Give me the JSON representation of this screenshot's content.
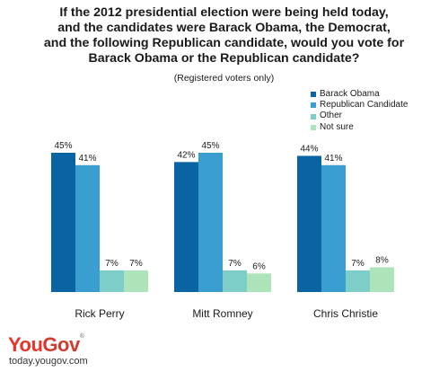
{
  "title_lines": [
    "If the 2012 presidential election were being held today,",
    "and the candidates were Barack Obama, the Democrat,",
    "and the following Republican candidate, would you vote for",
    "Barack Obama or the Republican candidate?"
  ],
  "subtitle": "(Registered voters only)",
  "brand": {
    "you": "You",
    "gov": "Gov",
    "mark": "®",
    "url": "today.yougov.com"
  },
  "chart_data": {
    "type": "bar",
    "categories": [
      "Rick Perry",
      "Mitt Romney",
      "Chris Christie"
    ],
    "series": [
      {
        "name": "Barack Obama",
        "color": "#0a64a4",
        "values": [
          45,
          42,
          44
        ]
      },
      {
        "name": "Republican Candidate",
        "color": "#3a9fd0",
        "values": [
          41,
          45,
          41
        ]
      },
      {
        "name": "Other",
        "color": "#7dcdc8",
        "values": [
          7,
          7,
          7
        ]
      },
      {
        "name": "Not sure",
        "color": "#aee4b9",
        "values": [
          7,
          6,
          8
        ]
      }
    ],
    "value_suffix": "%",
    "ylim": [
      0,
      45
    ],
    "grid": false,
    "legend": "top-right"
  }
}
